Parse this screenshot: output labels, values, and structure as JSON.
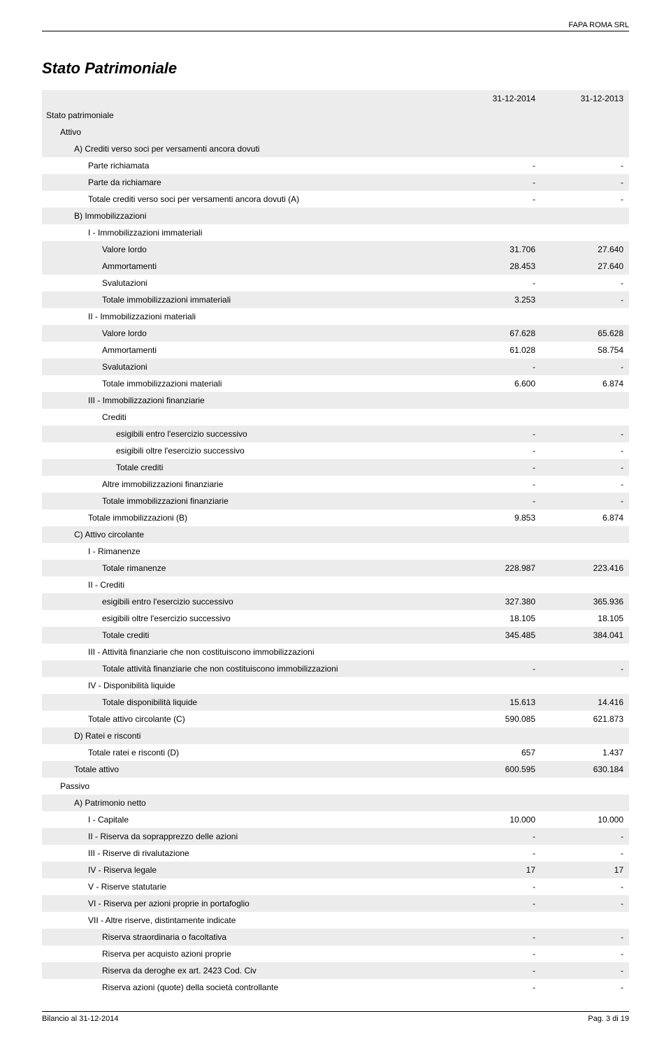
{
  "company_name": "FAPA ROMA SRL",
  "document_title": "Stato Patrimoniale",
  "table": {
    "header_shade": "#ececec",
    "columns": {
      "y2014": "31-12-2014",
      "y2013": "31-12-2013"
    },
    "rows": [
      {
        "label": "Stato patrimoniale",
        "indent": 0,
        "shade": true,
        "v1": "",
        "v2": ""
      },
      {
        "label": "Attivo",
        "indent": 1,
        "shade": true,
        "v1": "",
        "v2": ""
      },
      {
        "label": "A) Crediti verso soci per versamenti ancora dovuti",
        "indent": 2,
        "shade": true,
        "v1": "",
        "v2": ""
      },
      {
        "label": "Parte richiamata",
        "indent": 3,
        "shade": false,
        "v1": "-",
        "v2": "-"
      },
      {
        "label": "Parte da richiamare",
        "indent": 3,
        "shade": true,
        "v1": "-",
        "v2": "-"
      },
      {
        "label": "Totale crediti verso soci per versamenti ancora dovuti (A)",
        "indent": 3,
        "shade": false,
        "v1": "-",
        "v2": "-"
      },
      {
        "label": "B) Immobilizzazioni",
        "indent": 2,
        "shade": true,
        "v1": "",
        "v2": ""
      },
      {
        "label": "I - Immobilizzazioni immateriali",
        "indent": 3,
        "shade": false,
        "v1": "",
        "v2": ""
      },
      {
        "label": "Valore lordo",
        "indent": 4,
        "shade": true,
        "v1": "31.706",
        "v2": "27.640"
      },
      {
        "label": "Ammortamenti",
        "indent": 4,
        "shade": true,
        "v1": "28.453",
        "v2": "27.640"
      },
      {
        "label": "Svalutazioni",
        "indent": 4,
        "shade": false,
        "v1": "-",
        "v2": "-"
      },
      {
        "label": "Totale immobilizzazioni immateriali",
        "indent": 4,
        "shade": true,
        "v1": "3.253",
        "v2": "-"
      },
      {
        "label": "II - Immobilizzazioni materiali",
        "indent": 3,
        "shade": false,
        "v1": "",
        "v2": ""
      },
      {
        "label": "Valore lordo",
        "indent": 4,
        "shade": true,
        "v1": "67.628",
        "v2": "65.628"
      },
      {
        "label": "Ammortamenti",
        "indent": 4,
        "shade": false,
        "v1": "61.028",
        "v2": "58.754"
      },
      {
        "label": "Svalutazioni",
        "indent": 4,
        "shade": true,
        "v1": "-",
        "v2": "-"
      },
      {
        "label": "Totale immobilizzazioni materiali",
        "indent": 4,
        "shade": false,
        "v1": "6.600",
        "v2": "6.874"
      },
      {
        "label": "III - Immobilizzazioni finanziarie",
        "indent": 3,
        "shade": true,
        "v1": "",
        "v2": ""
      },
      {
        "label": "Crediti",
        "indent": 4,
        "shade": false,
        "v1": "",
        "v2": ""
      },
      {
        "label": "esigibili entro l'esercizio successivo",
        "indent": 5,
        "shade": true,
        "v1": "-",
        "v2": "-"
      },
      {
        "label": "esigibili oltre l'esercizio successivo",
        "indent": 5,
        "shade": false,
        "v1": "-",
        "v2": "-"
      },
      {
        "label": "Totale crediti",
        "indent": 5,
        "shade": true,
        "v1": "-",
        "v2": "-"
      },
      {
        "label": "Altre immobilizzazioni finanziarie",
        "indent": 4,
        "shade": false,
        "v1": "-",
        "v2": "-"
      },
      {
        "label": "Totale immobilizzazioni finanziarie",
        "indent": 4,
        "shade": true,
        "v1": "-",
        "v2": "-"
      },
      {
        "label": "Totale immobilizzazioni (B)",
        "indent": 3,
        "shade": false,
        "v1": "9.853",
        "v2": "6.874"
      },
      {
        "label": "C) Attivo circolante",
        "indent": 2,
        "shade": true,
        "v1": "",
        "v2": ""
      },
      {
        "label": "I - Rimanenze",
        "indent": 3,
        "shade": false,
        "v1": "",
        "v2": ""
      },
      {
        "label": "Totale rimanenze",
        "indent": 4,
        "shade": true,
        "v1": "228.987",
        "v2": "223.416"
      },
      {
        "label": "II - Crediti",
        "indent": 3,
        "shade": false,
        "v1": "",
        "v2": ""
      },
      {
        "label": "esigibili entro l'esercizio successivo",
        "indent": 4,
        "shade": true,
        "v1": "327.380",
        "v2": "365.936"
      },
      {
        "label": "esigibili oltre l'esercizio successivo",
        "indent": 4,
        "shade": false,
        "v1": "18.105",
        "v2": "18.105"
      },
      {
        "label": "Totale crediti",
        "indent": 4,
        "shade": true,
        "v1": "345.485",
        "v2": "384.041"
      },
      {
        "label": "III - Attività finanziarie che non costituiscono immobilizzazioni",
        "indent": 3,
        "shade": false,
        "v1": "",
        "v2": ""
      },
      {
        "label": "Totale attività finanziarie che non costituiscono immobilizzazioni",
        "indent": 4,
        "shade": true,
        "v1": "-",
        "v2": "-"
      },
      {
        "label": "IV - Disponibilità liquide",
        "indent": 3,
        "shade": false,
        "v1": "",
        "v2": ""
      },
      {
        "label": "Totale disponibilità liquide",
        "indent": 4,
        "shade": true,
        "v1": "15.613",
        "v2": "14.416"
      },
      {
        "label": "Totale attivo circolante (C)",
        "indent": 3,
        "shade": false,
        "v1": "590.085",
        "v2": "621.873"
      },
      {
        "label": "D) Ratei e risconti",
        "indent": 2,
        "shade": true,
        "v1": "",
        "v2": ""
      },
      {
        "label": "Totale ratei e risconti (D)",
        "indent": 3,
        "shade": false,
        "v1": "657",
        "v2": "1.437"
      },
      {
        "label": "Totale attivo",
        "indent": 2,
        "shade": true,
        "v1": "600.595",
        "v2": "630.184"
      },
      {
        "label": "Passivo",
        "indent": 1,
        "shade": false,
        "v1": "",
        "v2": ""
      },
      {
        "label": "A) Patrimonio netto",
        "indent": 2,
        "shade": true,
        "v1": "",
        "v2": ""
      },
      {
        "label": "I - Capitale",
        "indent": 3,
        "shade": false,
        "v1": "10.000",
        "v2": "10.000"
      },
      {
        "label": "II - Riserva da soprapprezzo delle azioni",
        "indent": 3,
        "shade": true,
        "v1": "-",
        "v2": "-"
      },
      {
        "label": "III - Riserve di rivalutazione",
        "indent": 3,
        "shade": false,
        "v1": "-",
        "v2": "-"
      },
      {
        "label": "IV - Riserva legale",
        "indent": 3,
        "shade": true,
        "v1": "17",
        "v2": "17"
      },
      {
        "label": "V - Riserve statutarie",
        "indent": 3,
        "shade": false,
        "v1": "-",
        "v2": "-"
      },
      {
        "label": "VI - Riserva per azioni proprie in portafoglio",
        "indent": 3,
        "shade": true,
        "v1": "-",
        "v2": "-"
      },
      {
        "label": "VII - Altre riserve, distintamente indicate",
        "indent": 3,
        "shade": false,
        "v1": "",
        "v2": ""
      },
      {
        "label": "Riserva straordinaria o facoltativa",
        "indent": 4,
        "shade": true,
        "v1": "-",
        "v2": "-"
      },
      {
        "label": "Riserva per acquisto azioni proprie",
        "indent": 4,
        "shade": false,
        "v1": "-",
        "v2": "-"
      },
      {
        "label": "Riserva da deroghe ex art. 2423 Cod. Civ",
        "indent": 4,
        "shade": true,
        "v1": "-",
        "v2": "-"
      },
      {
        "label": "Riserva azioni (quote) della società controllante",
        "indent": 4,
        "shade": false,
        "v1": "-",
        "v2": "-"
      }
    ]
  },
  "footer": {
    "left": "Bilancio al 31-12-2014",
    "right": "Pag. 3 di 19"
  }
}
